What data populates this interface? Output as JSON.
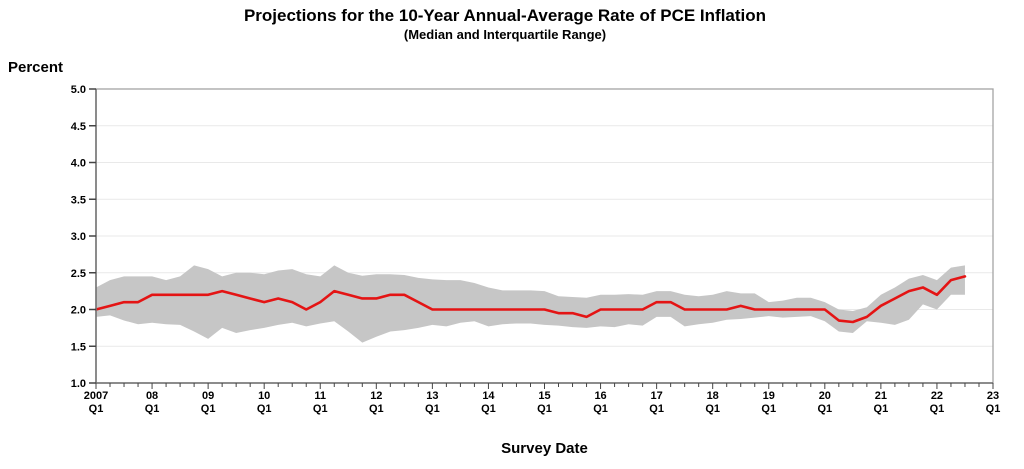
{
  "header": {
    "title": "Projections for the 10-Year Annual-Average Rate of PCE Inflation",
    "subtitle": "(Median and Interquartile Range)"
  },
  "axes": {
    "y_axis_title": "Percent",
    "x_axis_title": "Survey Date"
  },
  "colors": {
    "median_line": "#e41414",
    "iqr_band": "#c6c6c6",
    "gridline": "#e9e9e9",
    "plot_border": "#a3a3a3",
    "axis_line": "#6e6e6e",
    "tick": "#444444",
    "text": "#000000",
    "background": "#ffffff"
  },
  "chart_data": {
    "type": "line",
    "title": "Projections for the 10-Year Annual-Average Rate of PCE Inflation",
    "subtitle": "(Median and Interquartile Range)",
    "ylabel": "Percent",
    "xlabel": "Survey Date",
    "ylim": [
      1.0,
      5.0
    ],
    "grid": true,
    "legend": "none",
    "y_ticks": [
      "1.0",
      "1.5",
      "2.0",
      "2.5",
      "3.0",
      "3.5",
      "4.0",
      "4.5",
      "5.0"
    ],
    "x_quarters_total": 64,
    "x_tick_labels": [
      {
        "line1": "2007",
        "line2": "Q1"
      },
      {
        "line1": "08",
        "line2": "Q1"
      },
      {
        "line1": "09",
        "line2": "Q1"
      },
      {
        "line1": "10",
        "line2": "Q1"
      },
      {
        "line1": "11",
        "line2": "Q1"
      },
      {
        "line1": "12",
        "line2": "Q1"
      },
      {
        "line1": "13",
        "line2": "Q1"
      },
      {
        "line1": "14",
        "line2": "Q1"
      },
      {
        "line1": "15",
        "line2": "Q1"
      },
      {
        "line1": "16",
        "line2": "Q1"
      },
      {
        "line1": "17",
        "line2": "Q1"
      },
      {
        "line1": "18",
        "line2": "Q1"
      },
      {
        "line1": "19",
        "line2": "Q1"
      },
      {
        "line1": "20",
        "line2": "Q1"
      },
      {
        "line1": "21",
        "line2": "Q1"
      },
      {
        "line1": "22",
        "line2": "Q1"
      },
      {
        "line1": "23",
        "line2": "Q1"
      }
    ],
    "x": [
      "2007Q1",
      "2007Q2",
      "2007Q3",
      "2007Q4",
      "2008Q1",
      "2008Q2",
      "2008Q3",
      "2008Q4",
      "2009Q1",
      "2009Q2",
      "2009Q3",
      "2009Q4",
      "2010Q1",
      "2010Q2",
      "2010Q3",
      "2010Q4",
      "2011Q1",
      "2011Q2",
      "2011Q3",
      "2011Q4",
      "2012Q1",
      "2012Q2",
      "2012Q3",
      "2012Q4",
      "2013Q1",
      "2013Q2",
      "2013Q3",
      "2013Q4",
      "2014Q1",
      "2014Q2",
      "2014Q3",
      "2014Q4",
      "2015Q1",
      "2015Q2",
      "2015Q3",
      "2015Q4",
      "2016Q1",
      "2016Q2",
      "2016Q3",
      "2016Q4",
      "2017Q1",
      "2017Q2",
      "2017Q3",
      "2017Q4",
      "2018Q1",
      "2018Q2",
      "2018Q3",
      "2018Q4",
      "2019Q1",
      "2019Q2",
      "2019Q3",
      "2019Q4",
      "2020Q1",
      "2020Q2",
      "2020Q3",
      "2020Q4",
      "2021Q1",
      "2021Q2",
      "2021Q3",
      "2021Q4",
      "2022Q1",
      "2022Q2",
      "2022Q3"
    ],
    "series": [
      {
        "name": "Median",
        "role": "median",
        "color": "#e41414",
        "values": [
          2.0,
          2.05,
          2.1,
          2.1,
          2.2,
          2.2,
          2.2,
          2.2,
          2.2,
          2.25,
          2.2,
          2.15,
          2.1,
          2.15,
          2.1,
          2.0,
          2.1,
          2.25,
          2.2,
          2.15,
          2.15,
          2.2,
          2.2,
          2.1,
          2.0,
          2.0,
          2.0,
          2.0,
          2.0,
          2.0,
          2.0,
          2.0,
          2.0,
          1.95,
          1.95,
          1.9,
          2.0,
          2.0,
          2.0,
          2.0,
          2.1,
          2.1,
          2.0,
          2.0,
          2.0,
          2.0,
          2.05,
          2.0,
          2.0,
          2.0,
          2.0,
          2.0,
          2.0,
          1.85,
          1.83,
          1.9,
          2.05,
          2.15,
          2.25,
          2.3,
          2.2,
          2.4,
          2.45
        ]
      },
      {
        "name": "75th percentile",
        "role": "band_upper",
        "color": "#c6c6c6",
        "values": [
          2.3,
          2.4,
          2.45,
          2.45,
          2.45,
          2.4,
          2.45,
          2.6,
          2.55,
          2.45,
          2.5,
          2.5,
          2.48,
          2.53,
          2.55,
          2.48,
          2.45,
          2.6,
          2.5,
          2.46,
          2.48,
          2.48,
          2.47,
          2.43,
          2.41,
          2.4,
          2.4,
          2.36,
          2.3,
          2.26,
          2.26,
          2.26,
          2.25,
          2.18,
          2.17,
          2.16,
          2.2,
          2.2,
          2.21,
          2.2,
          2.25,
          2.25,
          2.2,
          2.18,
          2.2,
          2.25,
          2.22,
          2.22,
          2.1,
          2.12,
          2.16,
          2.16,
          2.1,
          2.0,
          1.98,
          2.03,
          2.2,
          2.3,
          2.42,
          2.47,
          2.4,
          2.57,
          2.6
        ]
      },
      {
        "name": "25th percentile",
        "role": "band_lower",
        "color": "#c6c6c6",
        "values": [
          1.9,
          1.92,
          1.85,
          1.8,
          1.82,
          1.8,
          1.79,
          1.7,
          1.6,
          1.75,
          1.68,
          1.72,
          1.75,
          1.79,
          1.82,
          1.77,
          1.81,
          1.84,
          1.7,
          1.55,
          1.63,
          1.7,
          1.72,
          1.75,
          1.79,
          1.77,
          1.82,
          1.84,
          1.77,
          1.8,
          1.81,
          1.81,
          1.79,
          1.78,
          1.76,
          1.75,
          1.77,
          1.76,
          1.8,
          1.78,
          1.9,
          1.9,
          1.77,
          1.8,
          1.82,
          1.86,
          1.87,
          1.89,
          1.91,
          1.89,
          1.9,
          1.91,
          1.84,
          1.7,
          1.68,
          1.84,
          1.82,
          1.79,
          1.86,
          2.07,
          2.0,
          2.2,
          2.2
        ]
      }
    ]
  }
}
